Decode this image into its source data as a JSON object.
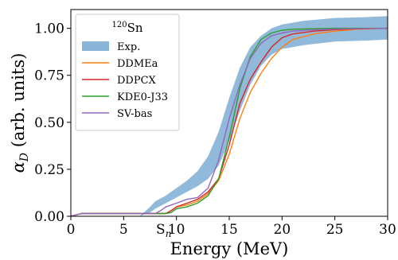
{
  "chart_data": {
    "type": "line",
    "title": "",
    "legend_title": {
      "sup": "120",
      "text": "Sn"
    },
    "legend_position": "top-left",
    "xlabel": "Energy (MeV)",
    "ylabel": {
      "main": "α",
      "sub": "D",
      "rest": " (arb. units)"
    },
    "xlim": [
      0,
      30
    ],
    "ylim": [
      0,
      1.1
    ],
    "x_ticks": [
      0,
      5,
      10,
      15,
      20,
      25,
      30
    ],
    "y_ticks": [
      0.0,
      0.25,
      0.5,
      0.75,
      1.0
    ],
    "y_tick_labels": [
      "0.00",
      "0.25",
      "0.50",
      "0.75",
      "1.00"
    ],
    "x_annotation": {
      "x": 9.1,
      "main": "S",
      "sub": "n"
    },
    "grid": false,
    "band": {
      "name": "Exp.",
      "color": "#8ab5d8",
      "x": [
        6.5,
        7.5,
        8.0,
        9.0,
        10.0,
        11.0,
        12.0,
        13.0,
        14.0,
        15.0,
        16.0,
        17.0,
        18.0,
        19.0,
        20.0,
        22.0,
        25.0,
        28.0,
        30.0
      ],
      "lower": [
        0.0,
        0.02,
        0.04,
        0.07,
        0.1,
        0.13,
        0.16,
        0.2,
        0.27,
        0.4,
        0.56,
        0.7,
        0.8,
        0.86,
        0.89,
        0.91,
        0.93,
        0.935,
        0.94
      ],
      "upper": [
        0.0,
        0.05,
        0.08,
        0.11,
        0.15,
        0.19,
        0.24,
        0.32,
        0.45,
        0.63,
        0.79,
        0.9,
        0.96,
        1.0,
        1.02,
        1.04,
        1.055,
        1.06,
        1.065
      ]
    },
    "series": [
      {
        "name": "DDMEa",
        "color": "#ff7f0e",
        "x": [
          0,
          1,
          2,
          5,
          8,
          9.0,
          9.5,
          10,
          11,
          12,
          13,
          14,
          15,
          16,
          17,
          18,
          19,
          20,
          21,
          23,
          25,
          27,
          30
        ],
        "y": [
          0.0,
          0.015,
          0.015,
          0.015,
          0.015,
          0.015,
          0.03,
          0.05,
          0.06,
          0.08,
          0.12,
          0.19,
          0.33,
          0.52,
          0.66,
          0.76,
          0.84,
          0.9,
          0.94,
          0.97,
          0.985,
          0.995,
          1.0
        ]
      },
      {
        "name": "DDPCX",
        "color": "#d62728",
        "x": [
          0,
          1,
          2,
          5,
          8,
          9.0,
          9.5,
          10,
          11,
          12,
          13,
          14,
          15,
          16,
          17,
          18,
          19,
          20,
          21,
          23,
          25,
          27,
          30
        ],
        "y": [
          0.0,
          0.015,
          0.015,
          0.015,
          0.015,
          0.015,
          0.03,
          0.05,
          0.07,
          0.09,
          0.13,
          0.2,
          0.38,
          0.6,
          0.73,
          0.82,
          0.9,
          0.95,
          0.97,
          0.985,
          0.993,
          0.997,
          1.0
        ]
      },
      {
        "name": "KDE0-J33",
        "color": "#2ca02c",
        "x": [
          0,
          1,
          2,
          5,
          8,
          9.0,
          9.5,
          10,
          11,
          12,
          13,
          14,
          15,
          16,
          17,
          18,
          19,
          20,
          21,
          23,
          25,
          27,
          30
        ],
        "y": [
          0.0,
          0.015,
          0.015,
          0.015,
          0.015,
          0.015,
          0.02,
          0.04,
          0.05,
          0.07,
          0.11,
          0.2,
          0.42,
          0.68,
          0.85,
          0.94,
          0.975,
          0.99,
          0.995,
          0.998,
          1.0,
          1.0,
          1.0
        ]
      },
      {
        "name": "SV-bas",
        "color": "#9467bd",
        "x": [
          0,
          1,
          2,
          5,
          8,
          8.5,
          9.0,
          9.5,
          10,
          11,
          12,
          13,
          14,
          15,
          16,
          17,
          18,
          19,
          20,
          21,
          23,
          25,
          27,
          30
        ],
        "y": [
          0.0,
          0.015,
          0.015,
          0.015,
          0.015,
          0.03,
          0.05,
          0.06,
          0.07,
          0.09,
          0.1,
          0.15,
          0.3,
          0.52,
          0.7,
          0.84,
          0.92,
          0.96,
          0.975,
          0.985,
          0.992,
          0.996,
          0.998,
          1.0
        ]
      }
    ]
  }
}
